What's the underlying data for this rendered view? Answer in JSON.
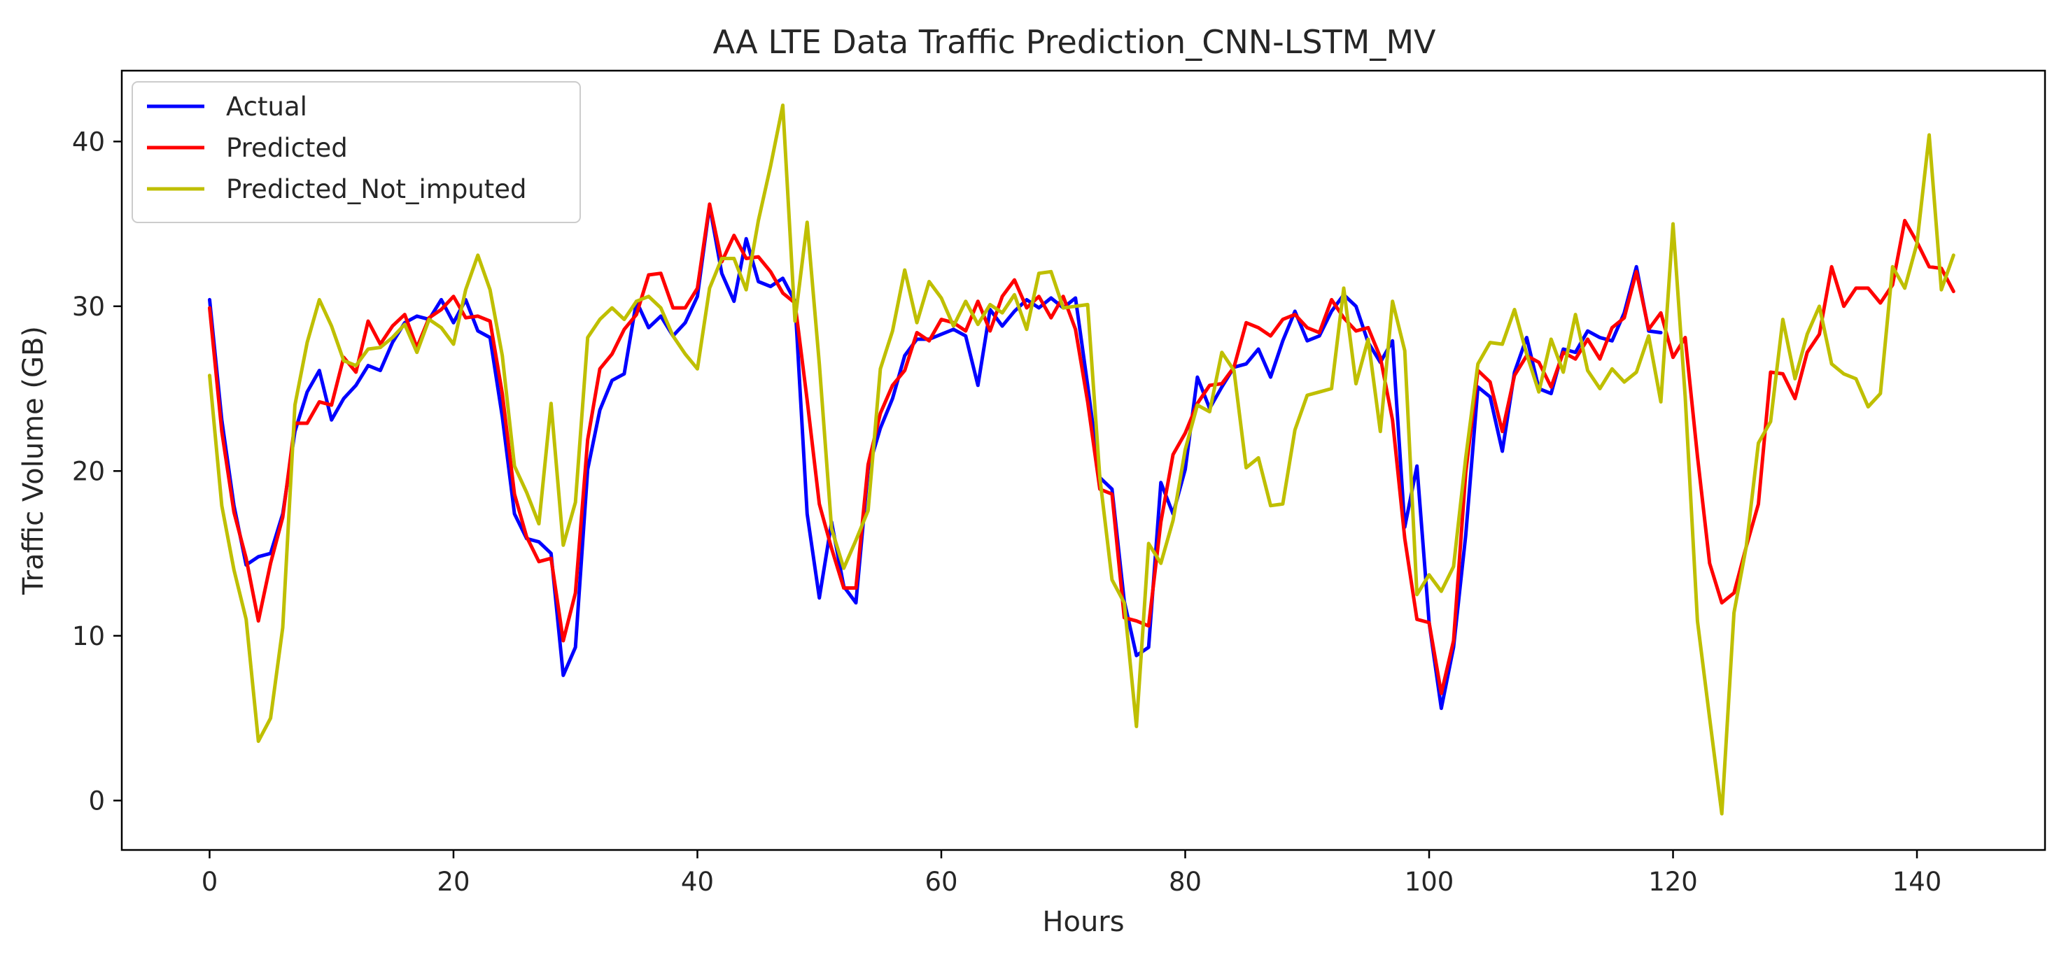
{
  "chart_data": {
    "type": "line",
    "title": "AA LTE Data Traffic Prediction_CNN-LSTM_MV",
    "xlabel": "Hours",
    "ylabel": "Traffic Volume (GB)",
    "xlim": [
      -7.2,
      150.5
    ],
    "ylim": [
      -3,
      44.3
    ],
    "xticks": [
      0,
      20,
      40,
      60,
      80,
      100,
      120,
      140
    ],
    "yticks": [
      0,
      10,
      20,
      30,
      40
    ],
    "legend_position": "upper-left",
    "series": [
      {
        "name": "Actual",
        "color": "#0000ff",
        "x_start": 0,
        "values": [
          30.4,
          23.1,
          17.9,
          14.3,
          14.8,
          15.0,
          17.4,
          22.4,
          24.8,
          26.1,
          23.1,
          24.4,
          25.2,
          26.4,
          26.1,
          27.8,
          29.0,
          29.4,
          29.2,
          30.4,
          29.0,
          30.4,
          28.5,
          28.1,
          23.3,
          17.4,
          15.9,
          15.7,
          15.0,
          7.6,
          9.3,
          20.1,
          23.7,
          25.5,
          25.9,
          30.3,
          28.7,
          29.4,
          28.2,
          29.0,
          30.6,
          36.1,
          32.0,
          30.3,
          34.1,
          31.5,
          31.2,
          31.7,
          30.3,
          17.4,
          12.3,
          16.9,
          13.0,
          12.0,
          20.1,
          22.6,
          24.4,
          27.0,
          28.0,
          28.0,
          28.3,
          28.6,
          28.2,
          25.2,
          29.8,
          28.8,
          29.7,
          30.4,
          29.9,
          30.5,
          29.9,
          30.5,
          25.2,
          19.6,
          18.9,
          12.1,
          8.8,
          9.3,
          19.3,
          17.4,
          20.1,
          25.7,
          23.8,
          25.1,
          26.3,
          26.5,
          27.4,
          25.7,
          27.9,
          29.7,
          27.9,
          28.2,
          29.7,
          30.7,
          30.0,
          27.8,
          26.6,
          27.9,
          16.6,
          20.3,
          10.8,
          5.6,
          9.3,
          16.1,
          25.1,
          24.5,
          21.2,
          26.0,
          28.1,
          25.0,
          24.7,
          27.4,
          27.2,
          28.5,
          28.1,
          27.9,
          29.6,
          32.4,
          28.5,
          28.4
        ]
      },
      {
        "name": "Predicted",
        "color": "#ff0000",
        "x_start": 0,
        "values": [
          29.9,
          22.4,
          17.5,
          14.7,
          10.9,
          14.4,
          17.2,
          22.9,
          22.9,
          24.2,
          24.0,
          26.9,
          26.0,
          29.1,
          27.7,
          28.8,
          29.5,
          27.5,
          29.3,
          29.8,
          30.6,
          29.3,
          29.4,
          29.1,
          24.7,
          18.6,
          16.0,
          14.5,
          14.7,
          9.7,
          12.6,
          21.9,
          26.2,
          27.1,
          28.6,
          29.5,
          31.9,
          32.0,
          29.9,
          29.9,
          31.1,
          36.2,
          32.7,
          34.3,
          32.9,
          33.0,
          32.1,
          30.8,
          30.2,
          24.3,
          18.0,
          15.3,
          12.9,
          12.9,
          20.4,
          23.5,
          25.2,
          26.1,
          28.4,
          27.9,
          29.2,
          29.0,
          28.5,
          30.3,
          28.5,
          30.6,
          31.6,
          29.9,
          30.6,
          29.3,
          30.6,
          28.6,
          24.2,
          18.9,
          18.6,
          11.1,
          10.9,
          10.6,
          16.9,
          21.0,
          22.3,
          24.1,
          25.2,
          25.3,
          26.3,
          29.0,
          28.7,
          28.2,
          29.2,
          29.5,
          28.7,
          28.4,
          30.4,
          29.3,
          28.5,
          28.7,
          26.9,
          23.1,
          15.9,
          11.0,
          10.8,
          6.5,
          9.7,
          19.9,
          26.1,
          25.4,
          22.4,
          25.8,
          27.0,
          26.6,
          25.1,
          27.2,
          26.8,
          28.0,
          26.8,
          28.7,
          29.3,
          32.1,
          28.6,
          29.6,
          26.9,
          28.1,
          20.9,
          14.4,
          12.0,
          12.6,
          15.4,
          18.0,
          26.0,
          25.9,
          24.4,
          27.2,
          28.3,
          32.4,
          30.0,
          31.1,
          31.1,
          30.2,
          31.3,
          35.2,
          33.9,
          32.4,
          32.3,
          30.9
        ]
      },
      {
        "name": "Predicted_Not_imputed",
        "color": "#bfbf00",
        "x_start": 0,
        "values": [
          25.8,
          17.9,
          14.0,
          11.0,
          3.6,
          5.0,
          10.5,
          24.0,
          27.8,
          30.4,
          28.8,
          26.7,
          26.4,
          27.4,
          27.5,
          28.1,
          28.9,
          27.2,
          29.2,
          28.7,
          27.7,
          31.0,
          33.1,
          31.0,
          27.0,
          20.3,
          18.7,
          16.8,
          24.1,
          15.5,
          18.1,
          28.1,
          29.2,
          29.9,
          29.2,
          30.3,
          30.6,
          29.9,
          28.2,
          27.1,
          26.2,
          31.1,
          32.9,
          32.9,
          31.0,
          35.2,
          38.5,
          42.2,
          29.1,
          35.1,
          26.5,
          16.5,
          14.1,
          15.8,
          17.6,
          26.2,
          28.5,
          32.2,
          29.0,
          31.5,
          30.5,
          28.8,
          30.3,
          28.9,
          30.1,
          29.6,
          30.7,
          28.6,
          32.0,
          32.1,
          29.9,
          30.0,
          30.1,
          19.6,
          13.4,
          12.0,
          4.5,
          15.6,
          14.4,
          17.0,
          21.3,
          24.0,
          23.6,
          27.2,
          26.1,
          20.2,
          20.8,
          17.9,
          18.0,
          22.5,
          24.6,
          24.8,
          25.0,
          31.1,
          25.3,
          28.0,
          22.4,
          30.3,
          27.3,
          12.5,
          13.7,
          12.7,
          14.2,
          20.8,
          26.5,
          27.8,
          27.7,
          29.8,
          27.1,
          24.8,
          28.0,
          26.0,
          29.5,
          26.1,
          25.0,
          26.2,
          25.4,
          26.0,
          28.2,
          24.2,
          35.0,
          24.5,
          10.9,
          5.0,
          -0.8,
          11.4,
          15.4,
          21.7,
          23.0,
          29.2,
          25.6,
          28.3,
          30.0,
          26.5,
          25.9,
          25.6,
          23.9,
          24.7,
          32.4,
          31.1,
          33.8,
          40.4,
          31.0,
          33.1
        ]
      }
    ]
  }
}
